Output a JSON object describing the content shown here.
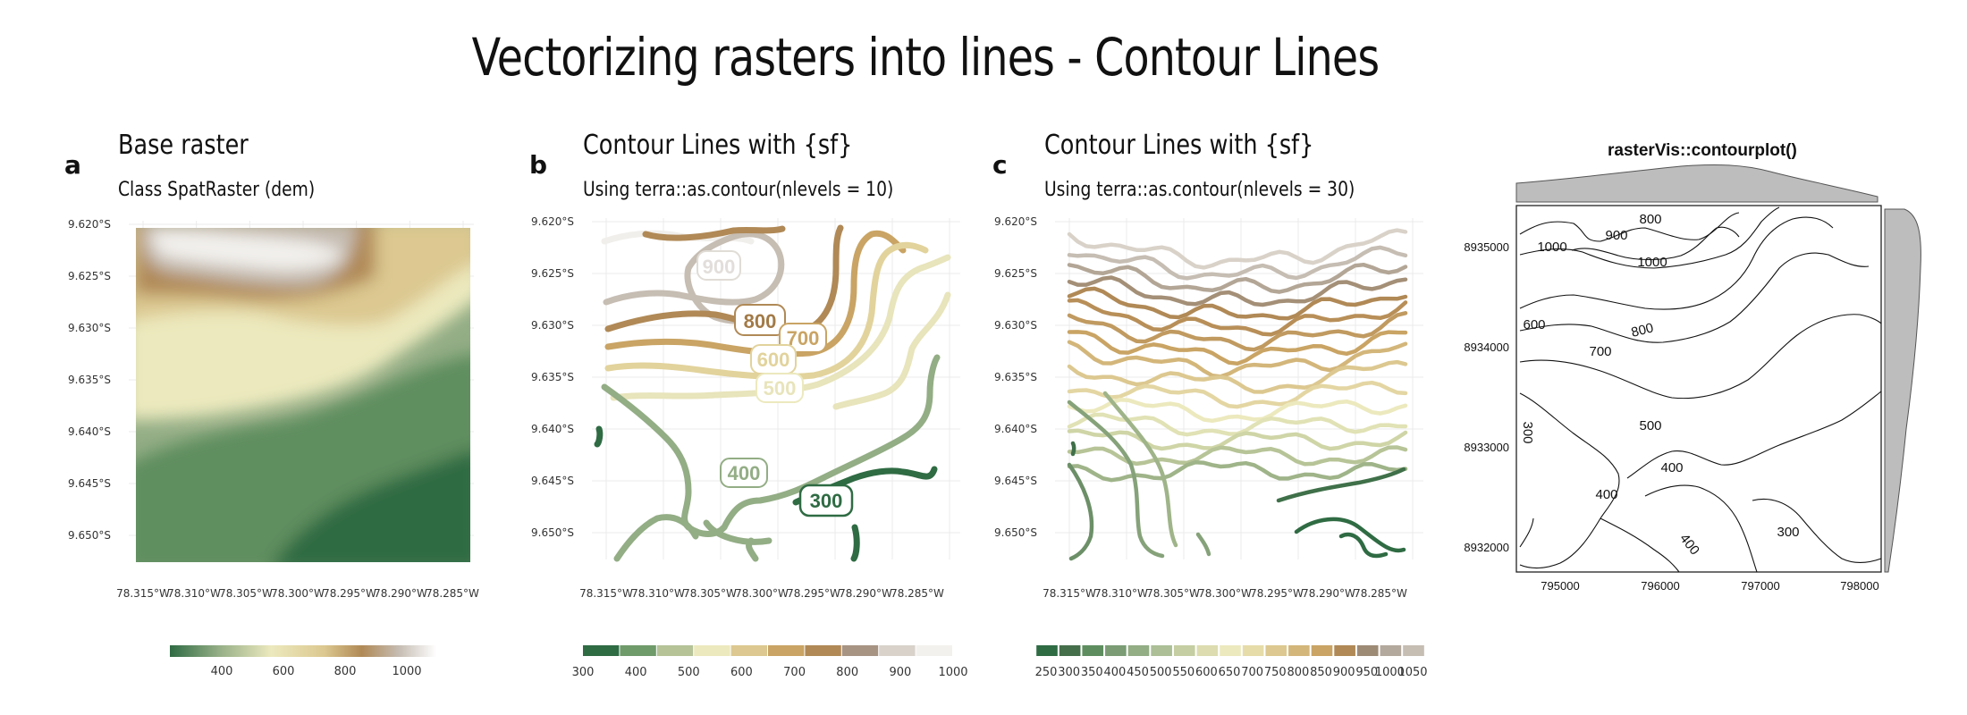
{
  "main_title": "Vectorizing rasters into lines - Contour Lines",
  "colors": {
    "palette": [
      "#2f6b43",
      "#5e8e5f",
      "#93ad85",
      "#c4cea2",
      "#ece9be",
      "#dcc890",
      "#c9a464",
      "#b08956",
      "#9e8b76",
      "#c6bdb3",
      "#ffffff"
    ]
  },
  "panels": [
    {
      "letter": "a",
      "title": "Base raster",
      "subtitle": "Class SpatRaster (dem)",
      "y_ticks": [
        "9.620°S",
        "9.625°S",
        "9.630°S",
        "9.635°S",
        "9.640°S",
        "9.645°S",
        "9.650°S"
      ],
      "x_ticks": [
        "78.315°W",
        "78.310°W",
        "78.305°W",
        "78.300°W",
        "78.295°W",
        "78.290°W",
        "78.285°W"
      ],
      "legend_ticks": [
        "400",
        "600",
        "800",
        "1000"
      ],
      "legend_range": [
        260,
        1100
      ]
    },
    {
      "letter": "b",
      "title": "Contour Lines with {sf}",
      "subtitle": "Using terra::as.contour(nlevels = 10)",
      "y_ticks": [
        "9.620°S",
        "9.625°S",
        "9.630°S",
        "9.635°S",
        "9.640°S",
        "9.645°S",
        "9.650°S"
      ],
      "x_ticks": [
        "78.315°W",
        "78.310°W",
        "78.305°W",
        "78.300°W",
        "78.295°W",
        "78.290°W",
        "78.285°W"
      ],
      "contour_labels": [
        "900",
        "800",
        "700",
        "600",
        "500",
        "400",
        "300"
      ],
      "legend_ticks": [
        "300",
        "400",
        "500",
        "600",
        "700",
        "800",
        "900",
        "1000"
      ]
    },
    {
      "letter": "c",
      "title": "Contour Lines with {sf}",
      "subtitle": "Using terra::as.contour(nlevels = 30)",
      "y_ticks": [
        "9.620°S",
        "9.625°S",
        "9.630°S",
        "9.635°S",
        "9.640°S",
        "9.645°S",
        "9.650°S"
      ],
      "x_ticks": [
        "78.315°W",
        "78.310°W",
        "78.305°W",
        "78.300°W",
        "78.295°W",
        "78.290°W",
        "78.285°W"
      ],
      "legend_ticks": [
        "250",
        "300",
        "350",
        "400",
        "450",
        "500",
        "550",
        "600",
        "650",
        "700",
        "750",
        "800",
        "850",
        "900",
        "950",
        "1000",
        "1050"
      ]
    },
    {
      "title": "rasterVis::contourplot()",
      "y_ticks": [
        "8935000",
        "8934000",
        "8933000",
        "8932000"
      ],
      "x_ticks": [
        "795000",
        "796000",
        "797000",
        "798000"
      ],
      "contour_labels": [
        "800",
        "900",
        "1000",
        "1000",
        "600",
        "800",
        "700",
        "500",
        "300",
        "400",
        "400",
        "400",
        "300"
      ]
    }
  ],
  "chart_data": [
    {
      "type": "heatmap",
      "title": "Base raster",
      "subtitle": "Class SpatRaster (dem)",
      "x_ticks": [
        "78.315°W",
        "78.310°W",
        "78.305°W",
        "78.300°W",
        "78.295°W",
        "78.290°W",
        "78.285°W"
      ],
      "y_ticks": [
        "9.620°S",
        "9.625°S",
        "9.630°S",
        "9.635°S",
        "9.640°S",
        "9.645°S",
        "9.650°S"
      ],
      "value_range": [
        260,
        1100
      ],
      "legend_ticks": [
        400,
        600,
        800,
        1000
      ]
    },
    {
      "type": "line",
      "title": "Contour Lines with {sf}",
      "subtitle": "Using terra::as.contour(nlevels = 10)",
      "levels": [
        300,
        400,
        500,
        600,
        700,
        800,
        900
      ],
      "legend_ticks": [
        300,
        400,
        500,
        600,
        700,
        800,
        900,
        1000
      ]
    },
    {
      "type": "line",
      "title": "Contour Lines with {sf}",
      "subtitle": "Using terra::as.contour(nlevels = 30)",
      "levels": [
        250,
        300,
        350,
        400,
        450,
        500,
        550,
        600,
        650,
        700,
        750,
        800,
        850,
        900,
        950,
        1000,
        1050
      ],
      "legend_ticks": [
        250,
        300,
        350,
        400,
        450,
        500,
        550,
        600,
        650,
        700,
        750,
        800,
        850,
        900,
        950,
        1000,
        1050
      ]
    },
    {
      "type": "line",
      "title": "rasterVis::contourplot()",
      "x_ticks": [
        795000,
        796000,
        797000,
        798000
      ],
      "y_ticks": [
        8935000,
        8934000,
        8933000,
        8932000
      ],
      "levels": [
        300,
        400,
        500,
        600,
        700,
        800,
        900,
        1000
      ]
    }
  ]
}
